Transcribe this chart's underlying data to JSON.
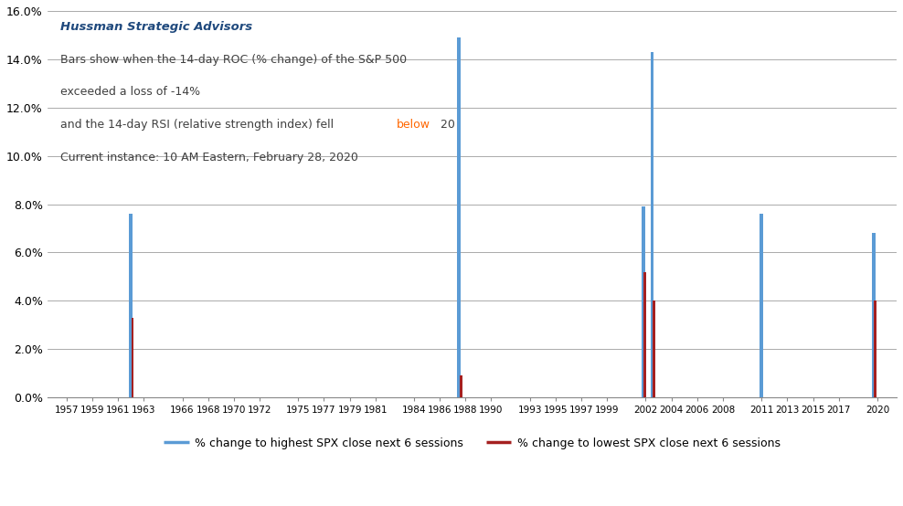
{
  "title_bold": "Hussman Strategic Advisors",
  "subtitle_lines": [
    "Bars show when the 14-day ROC (% change) of the S&P 500",
    "exceeded a loss of -14%",
    "and the 14-day RSI (relative strength index) fell below 20",
    "Current instance: 10 AM Eastern, February 28, 2020"
  ],
  "blue_color": "#5B9BD5",
  "red_color": "#A52020",
  "background_color": "#FFFFFF",
  "grid_color": "#888888",
  "ylim": [
    0.0,
    0.16
  ],
  "yticks": [
    0.0,
    0.02,
    0.04,
    0.06,
    0.08,
    0.1,
    0.12,
    0.14,
    0.16
  ],
  "ytick_labels": [
    "0.0%",
    "2.0%",
    "4.0%",
    "6.0%",
    "8.0%",
    "10.0%",
    "12.0%",
    "14.0%",
    "16.0%"
  ],
  "xlim": [
    1955.5,
    2021.5
  ],
  "xtick_years": [
    1957,
    1959,
    1961,
    1963,
    1966,
    1968,
    1970,
    1972,
    1975,
    1977,
    1979,
    1981,
    1984,
    1986,
    1988,
    1990,
    1993,
    1995,
    1997,
    1999,
    2002,
    2004,
    2006,
    2008,
    2011,
    2013,
    2015,
    2017,
    2020
  ],
  "events": [
    {
      "year": 1962.0,
      "high": 0.076,
      "low": 0.033
    },
    {
      "year": 1987.5,
      "high": 0.149,
      "low": 0.009
    },
    {
      "year": 2001.8,
      "high": 0.079,
      "low": 0.052
    },
    {
      "year": 2002.5,
      "high": 0.143,
      "low": 0.04
    },
    {
      "year": 2011.0,
      "high": 0.076,
      "low": 0.0
    },
    {
      "year": 2019.7,
      "high": 0.068,
      "low": 0.04
    }
  ],
  "bar_width": 0.28,
  "legend_blue_label": "% change to highest SPX close next 6 sessions",
  "legend_red_label": "% change to lowest SPX close next 6 sessions"
}
